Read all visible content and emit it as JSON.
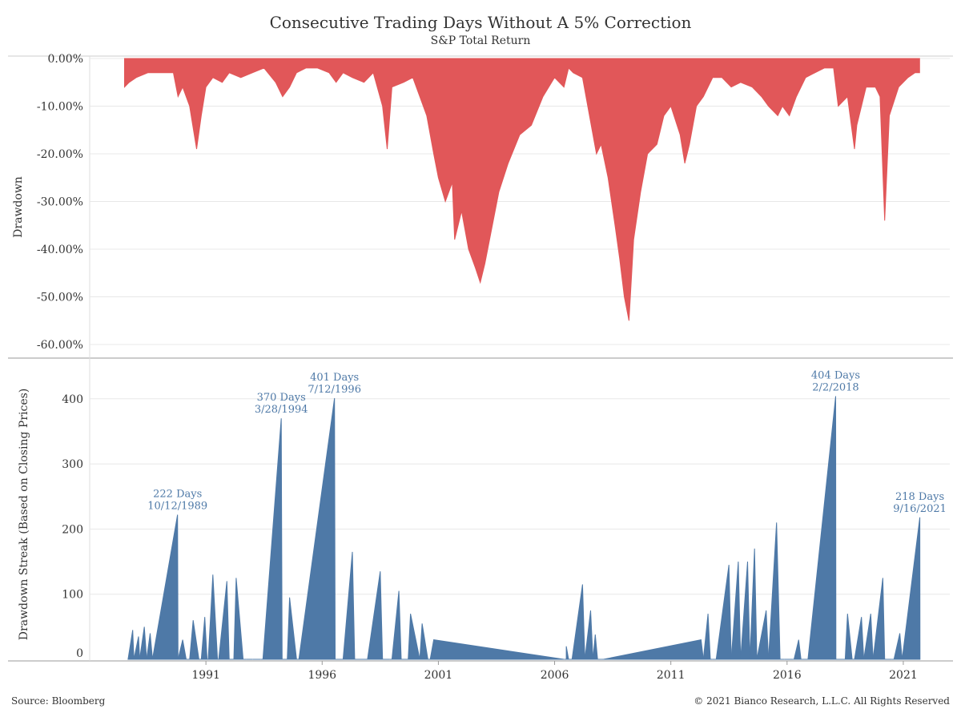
{
  "header": {
    "title": "Consecutive Trading Days Without A 5% Correction",
    "subtitle": "S&P Total Return"
  },
  "footer": {
    "source": "Source: Bloomberg",
    "copyright": "© 2021 Bianco Research, L.L.C. All Rights Reserved"
  },
  "colors": {
    "drawdown": "#e15759",
    "streak": "#4e79a7",
    "annotation": "#4e79a7",
    "grid": "#e8e8e8",
    "axis": "#999999"
  },
  "chart_data": [
    {
      "type": "area",
      "name": "drawdown",
      "ylabel": "Drawdown",
      "ylim": [
        -65,
        0
      ],
      "yticks": [
        0,
        -10,
        -20,
        -30,
        -40,
        -50,
        -60
      ],
      "ytick_labels": [
        "0.00%",
        "-10.00%",
        "-20.00%",
        "-30.00%",
        "-40.00%",
        "-50.00%",
        "-60.00%"
      ],
      "x": [
        1987.5,
        1987.7,
        1988.0,
        1988.5,
        1989.0,
        1989.6,
        1989.8,
        1990.0,
        1990.3,
        1990.6,
        1990.8,
        1991.0,
        1991.3,
        1991.7,
        1992.0,
        1992.5,
        1993.0,
        1993.5,
        1994.0,
        1994.3,
        1994.6,
        1994.9,
        1995.3,
        1995.8,
        1996.3,
        1996.6,
        1996.9,
        1997.3,
        1997.8,
        1998.2,
        1998.6,
        1998.8,
        1999.0,
        1999.5,
        1999.9,
        2000.2,
        2000.5,
        2000.8,
        2001.0,
        2001.3,
        2001.6,
        2001.7,
        2002.0,
        2002.3,
        2002.6,
        2002.8,
        2003.0,
        2003.2,
        2003.6,
        2004.0,
        2004.5,
        2005.0,
        2005.5,
        2006.0,
        2006.4,
        2006.6,
        2006.8,
        2007.2,
        2007.5,
        2007.8,
        2008.0,
        2008.3,
        2008.6,
        2008.8,
        2009.0,
        2009.2,
        2009.4,
        2009.7,
        2010.0,
        2010.4,
        2010.7,
        2011.0,
        2011.4,
        2011.6,
        2011.8,
        2012.1,
        2012.4,
        2012.8,
        2013.2,
        2013.6,
        2014.0,
        2014.5,
        2014.9,
        2015.2,
        2015.6,
        2015.8,
        2016.1,
        2016.4,
        2016.8,
        2017.2,
        2017.6,
        2018.0,
        2018.2,
        2018.6,
        2018.9,
        2019.0,
        2019.4,
        2019.8,
        2020.0,
        2020.2,
        2020.4,
        2020.8,
        2021.2,
        2021.5,
        2021.7
      ],
      "y": [
        -6,
        -5,
        -4,
        -3,
        -3,
        -3,
        -8,
        -6,
        -10,
        -19,
        -12,
        -6,
        -4,
        -5,
        -3,
        -4,
        -3,
        -2,
        -5,
        -8,
        -6,
        -3,
        -2,
        -2,
        -3,
        -5,
        -3,
        -4,
        -5,
        -3,
        -10,
        -19,
        -6,
        -5,
        -4,
        -8,
        -12,
        -20,
        -25,
        -30,
        -26,
        -38,
        -32,
        -40,
        -44,
        -47,
        -43,
        -38,
        -28,
        -22,
        -16,
        -14,
        -8,
        -4,
        -6,
        -2,
        -3,
        -4,
        -12,
        -20,
        -18,
        -25,
        -35,
        -42,
        -50,
        -55,
        -38,
        -28,
        -20,
        -18,
        -12,
        -10,
        -16,
        -22,
        -18,
        -10,
        -8,
        -4,
        -4,
        -6,
        -5,
        -6,
        -8,
        -10,
        -12,
        -10,
        -12,
        -8,
        -4,
        -3,
        -2,
        -2,
        -10,
        -8,
        -19,
        -14,
        -6,
        -6,
        -8,
        -34,
        -12,
        -6,
        -4,
        -3,
        -3
      ]
    },
    {
      "type": "area",
      "name": "streak",
      "ylabel": "Drawdown Streak (Based on Closing Prices)",
      "ylim": [
        0,
        450
      ],
      "yticks": [
        0,
        100,
        200,
        300,
        400
      ],
      "ytick_labels": [
        "0",
        "100",
        "200",
        "300",
        "400"
      ],
      "xticks": [
        1991,
        1996,
        2001,
        2006,
        2011,
        2016,
        2021
      ],
      "xlim": [
        1986,
        2023
      ],
      "x": [
        1987.65,
        1987.85,
        1987.9,
        1988.1,
        1988.15,
        1988.35,
        1988.45,
        1988.6,
        1988.7,
        1989.78,
        1989.8,
        1990.0,
        1990.15,
        1990.3,
        1990.45,
        1990.7,
        1990.8,
        1990.95,
        1991.05,
        1991.1,
        1991.3,
        1991.5,
        1991.55,
        1991.9,
        1992.0,
        1992.2,
        1992.3,
        1992.6,
        1992.75,
        1993.0,
        1993.15,
        1993.35,
        1993.45,
        1994.24,
        1994.28,
        1994.5,
        1994.6,
        1994.9,
        1995.0,
        1996.53,
        1996.56,
        1996.8,
        1996.9,
        1997.3,
        1997.4,
        1997.8,
        1997.95,
        1998.5,
        1998.6,
        1998.9,
        1999.0,
        1999.3,
        1999.4,
        1999.7,
        1999.8,
        2000.2,
        2000.3,
        2000.55,
        2000.65,
        2000.8,
        2006.4,
        2006.5,
        2006.5,
        2006.6,
        2006.75,
        2007.2,
        2007.3,
        2007.55,
        2007.65,
        2007.75,
        2007.85,
        2008.0,
        2008.1,
        2012.3,
        2012.4,
        2012.6,
        2012.7,
        2012.8,
        2012.95,
        2013.5,
        2013.6,
        2013.9,
        2014.0,
        2014.3,
        2014.4,
        2014.6,
        2014.7,
        2015.1,
        2015.2,
        2015.55,
        2015.7,
        2015.8,
        2015.9,
        2016.25,
        2016.3,
        2016.5,
        2016.6,
        2016.8,
        2016.9,
        2018.09,
        2018.1,
        2018.5,
        2018.6,
        2018.8,
        2018.9,
        2019.2,
        2019.3,
        2019.6,
        2019.7,
        2020.12,
        2020.2,
        2020.5,
        2020.6,
        2020.85,
        2020.95,
        2021.71,
        2021.72
      ],
      "y": [
        0,
        45,
        0,
        35,
        0,
        50,
        0,
        40,
        0,
        222,
        0,
        30,
        0,
        0,
        60,
        0,
        0,
        65,
        0,
        0,
        130,
        0,
        0,
        120,
        0,
        0,
        125,
        0,
        0,
        0,
        0,
        0,
        0,
        370,
        0,
        0,
        95,
        0,
        0,
        401,
        0,
        0,
        0,
        165,
        0,
        0,
        0,
        135,
        0,
        0,
        0,
        105,
        0,
        0,
        70,
        0,
        55,
        0,
        0,
        30,
        0,
        0,
        20,
        0,
        0,
        115,
        0,
        75,
        0,
        38,
        0,
        0,
        0,
        30,
        0,
        70,
        0,
        0,
        0,
        145,
        0,
        150,
        0,
        150,
        0,
        170,
        0,
        75,
        0,
        210,
        0,
        0,
        0,
        0,
        0,
        30,
        0,
        0,
        0,
        404,
        0,
        0,
        70,
        0,
        0,
        65,
        0,
        70,
        0,
        125,
        0,
        0,
        0,
        40,
        0,
        218,
        0
      ],
      "annotations": [
        {
          "line1": "222 Days",
          "line2": "10/12/1989",
          "x": 1989.78,
          "y": 222
        },
        {
          "line1": "370 Days",
          "line2": "3/28/1994",
          "x": 1994.24,
          "y": 370
        },
        {
          "line1": "401 Days",
          "line2": "7/12/1996",
          "x": 1996.53,
          "y": 401
        },
        {
          "line1": "404 Days",
          "line2": "2/2/2018",
          "x": 2018.09,
          "y": 404
        },
        {
          "line1": "218 Days",
          "line2": "9/16/2021",
          "x": 2021.71,
          "y": 218
        }
      ]
    }
  ]
}
